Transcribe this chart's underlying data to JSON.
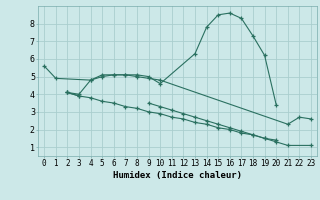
{
  "xlabel": "Humidex (Indice chaleur)",
  "ylabel": "",
  "xlim": [
    -0.5,
    23.5
  ],
  "ylim": [
    0.5,
    9.0
  ],
  "bg_color": "#cce8e8",
  "line_color": "#2a7060",
  "grid_color": "#aacece",
  "line1_x": [
    0,
    1,
    4,
    5,
    6,
    7,
    8,
    9,
    10,
    13,
    14,
    15,
    16,
    17,
    18,
    19,
    20
  ],
  "line1_y": [
    5.6,
    4.9,
    4.8,
    5.1,
    5.1,
    5.1,
    5.1,
    5.0,
    4.6,
    6.3,
    7.8,
    8.5,
    8.6,
    8.3,
    7.3,
    6.2,
    3.4
  ],
  "line2_x": [
    2,
    3,
    4,
    5,
    6,
    7,
    8,
    9,
    10,
    21,
    22,
    23
  ],
  "line2_y": [
    4.1,
    4.0,
    4.8,
    5.0,
    5.1,
    5.1,
    5.0,
    4.9,
    4.8,
    2.3,
    2.7,
    2.6
  ],
  "line3_x": [
    2,
    3,
    9,
    10,
    11,
    12,
    13,
    14,
    15,
    16,
    17,
    18,
    19,
    20,
    21,
    23
  ],
  "line3_y": [
    4.1,
    3.9,
    3.5,
    3.3,
    3.1,
    2.9,
    2.7,
    2.5,
    2.3,
    2.1,
    1.9,
    1.7,
    1.5,
    1.3,
    1.1,
    1.1
  ],
  "line4_x": [
    2,
    3,
    4,
    5,
    6,
    7,
    8,
    9,
    10,
    11,
    12,
    13,
    14,
    15,
    16,
    17,
    18,
    19,
    20
  ],
  "line4_y": [
    4.1,
    3.9,
    3.8,
    3.6,
    3.5,
    3.3,
    3.2,
    3.0,
    2.9,
    2.7,
    2.6,
    2.4,
    2.3,
    2.1,
    2.0,
    1.8,
    1.7,
    1.5,
    1.4
  ],
  "xtick_labels": [
    "0",
    "1",
    "2",
    "3",
    "4",
    "5",
    "6",
    "7",
    "8",
    "9",
    "10",
    "11",
    "12",
    "13",
    "14",
    "15",
    "16",
    "17",
    "18",
    "19",
    "20",
    "21",
    "22",
    "23"
  ],
  "ytick_values": [
    1,
    2,
    3,
    4,
    5,
    6,
    7,
    8
  ],
  "tick_fontsize": 5.5,
  "xlabel_fontsize": 6.5
}
